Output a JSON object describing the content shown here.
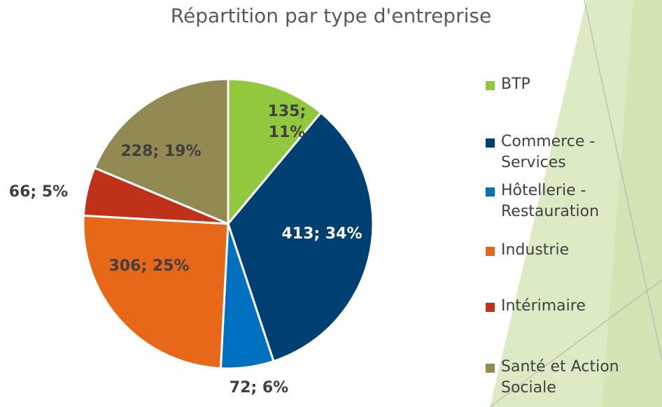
{
  "chart_data": {
    "type": "pie",
    "title": "Répartition par type d'entreprise",
    "categories": [
      "BTP",
      "Commerce - Services",
      "Hôtellerie - Restauration",
      "Industrie",
      "Intérimaire",
      "Santé et Action Sociale"
    ],
    "values": [
      135,
      413,
      72,
      306,
      66,
      228
    ],
    "value_labels": [
      "135; 11%",
      "413; 34%",
      "72; 6%",
      "306; 25%",
      "66; 5%",
      "228; 19%"
    ],
    "colors": [
      "#92c83e",
      "#003f72",
      "#0070c0",
      "#e8681a",
      "#c0311a",
      "#938953"
    ],
    "legend": "right"
  }
}
